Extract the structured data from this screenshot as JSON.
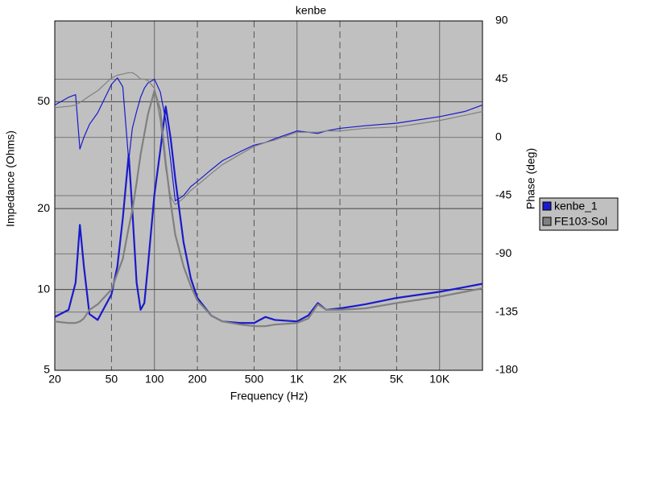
{
  "chart_data": {
    "type": "line",
    "title": "kenbe",
    "x_label": "Frequency (Hz)",
    "y_label": "Impedance (Ohms)",
    "y2_label": "Phase (deg)",
    "x_scale": "log",
    "y_scale": "log",
    "grid": true,
    "legend": "right",
    "x": [
      20,
      25,
      28,
      30,
      32,
      35,
      40,
      50,
      55,
      60,
      66,
      70,
      75,
      80,
      85,
      90,
      100,
      110,
      120,
      130,
      140,
      160,
      180,
      200,
      250,
      300,
      400,
      500,
      600,
      700,
      1000,
      1200,
      1400,
      1600,
      2000,
      3000,
      5000,
      10000,
      15000,
      20000
    ],
    "series": [
      {
        "name": "kenbe_1",
        "color": "#1a1acc",
        "width": 2.2,
        "values": [
          7.9,
          8.4,
          10.6,
          17.4,
          12.2,
          8.1,
          7.7,
          9.6,
          12.2,
          18.4,
          31.8,
          19.7,
          10.6,
          8.4,
          8.9,
          12.2,
          22.6,
          33,
          48,
          36.5,
          25.9,
          15,
          11,
          9.3,
          8.0,
          7.6,
          7.5,
          7.5,
          7.9,
          7.7,
          7.6,
          8.0,
          8.9,
          8.4,
          8.5,
          8.8,
          9.3,
          9.8,
          10.2,
          10.5
        ]
      },
      {
        "name": "FE103-Sol",
        "color": "#808080",
        "width": 2.2,
        "values": [
          7.6,
          7.5,
          7.5,
          7.6,
          7.8,
          8.4,
          8.8,
          10,
          11.5,
          13,
          17,
          19.7,
          25,
          31.8,
          38,
          44.8,
          55,
          46.5,
          29.6,
          21,
          16,
          12.2,
          10.3,
          9.1,
          8.0,
          7.6,
          7.4,
          7.3,
          7.3,
          7.4,
          7.5,
          7.8,
          8.8,
          8.4,
          8.4,
          8.5,
          8.9,
          9.4,
          9.8,
          10.1
        ]
      },
      {
        "axis": "y2",
        "color": "#1a1acc",
        "width": 1.2,
        "values": [
          25,
          31,
          33,
          -9,
          0,
          10,
          19,
          41,
          46,
          39,
          -18,
          7,
          20,
          31,
          38,
          42,
          45,
          35,
          13,
          -18,
          -49,
          -45,
          -38,
          -34,
          -25,
          -18,
          -11,
          -6,
          -4,
          -1,
          5,
          4,
          3,
          5,
          7,
          9,
          11,
          16,
          20,
          25
        ]
      },
      {
        "axis": "y2",
        "color": "#808080",
        "width": 1.2,
        "values": [
          23,
          24,
          25,
          27,
          29,
          32,
          36,
          46,
          48,
          49,
          50,
          50,
          48,
          45,
          45,
          44,
          38,
          13,
          -24,
          -46,
          -52,
          -47,
          -41,
          -37,
          -28,
          -21,
          -13,
          -7,
          -4,
          -2,
          4,
          4,
          4,
          5,
          5,
          7,
          8,
          13,
          17,
          20
        ]
      }
    ],
    "xlim": [
      20,
      20000
    ],
    "xticks": [
      20,
      50,
      100,
      200,
      500,
      {
        "value": 1000,
        "label": "1K"
      },
      {
        "value": 2000,
        "label": "2K"
      },
      {
        "value": 5000,
        "label": "5K"
      },
      {
        "value": 10000,
        "label": "10K"
      }
    ],
    "ylim": [
      5,
      100
    ],
    "yticks": [
      5,
      10,
      20,
      50
    ],
    "y2lim": [
      -180,
      90
    ],
    "y2ticks": [
      -180,
      -135,
      -90,
      -45,
      0,
      45,
      90
    ]
  }
}
